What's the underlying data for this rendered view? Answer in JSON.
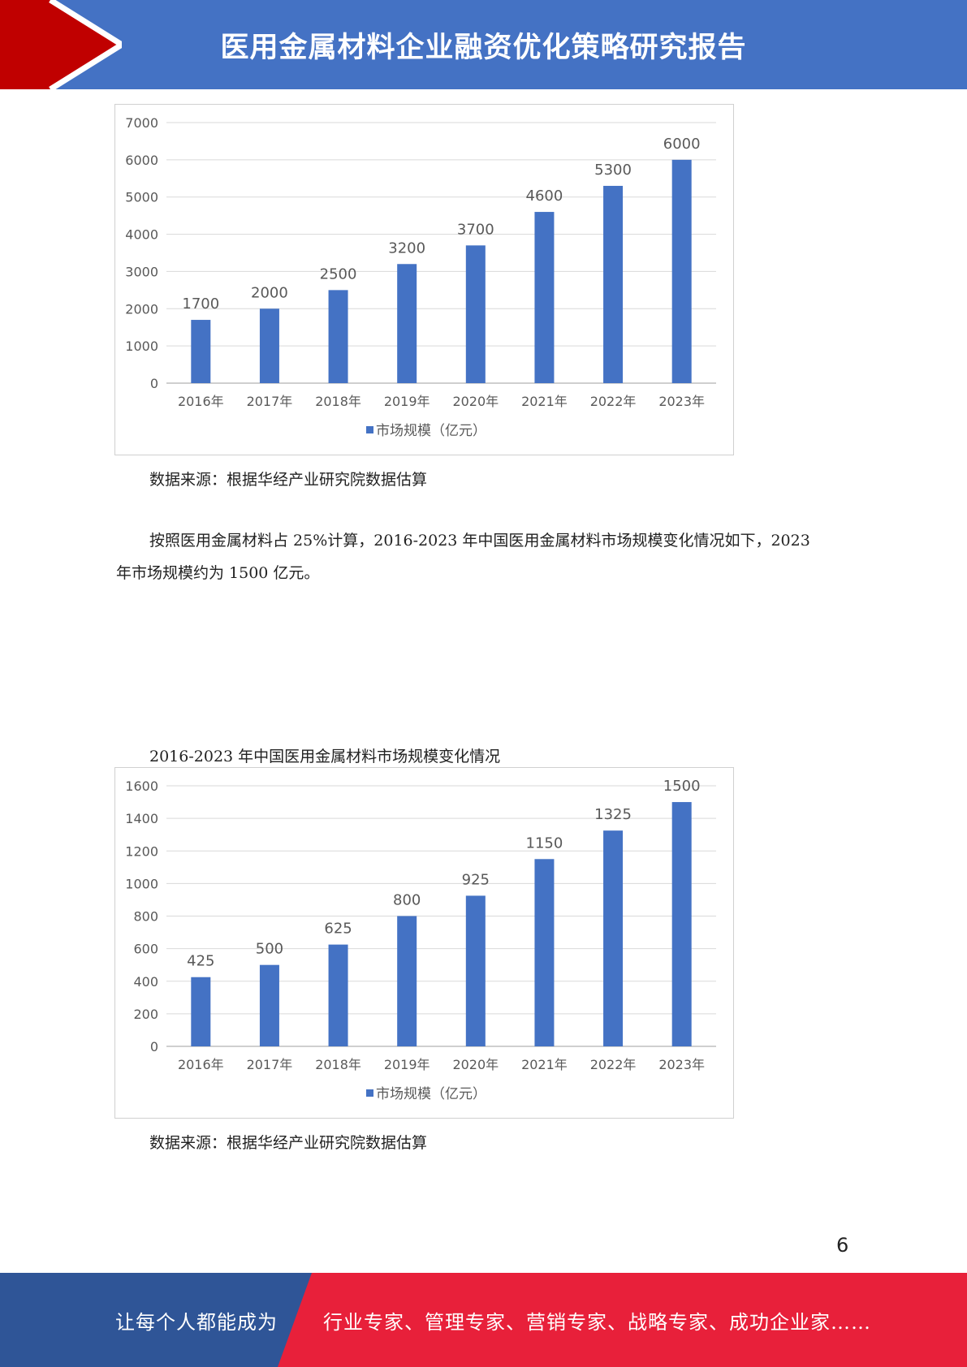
{
  "header": {
    "title": "医用金属材料企业融资优化策略研究报告"
  },
  "colors": {
    "header_blue": "#4472c4",
    "header_red": "#c00000",
    "bar_blue": "#4472c4",
    "footer_blue": "#2f5597",
    "footer_red": "#e8203a"
  },
  "chart1": {
    "source": "数据来源：根据华经产业研究院数据估算"
  },
  "paragraph": {
    "line1": "按照医用金属材料占 25%计算，2016-2023 年中国医用金属材料市场规模变化情况如下，2023",
    "line2": "年市场规模约为 1500 亿元。"
  },
  "chart2": {
    "caption": "2016-2023 年中国医用金属材料市场规模变化情况",
    "source": "数据来源：根据华经产业研究院数据估算"
  },
  "chart_data": [
    {
      "type": "bar",
      "categories": [
        "2016年",
        "2017年",
        "2018年",
        "2019年",
        "2020年",
        "2021年",
        "2022年",
        "2023年"
      ],
      "series": [
        {
          "name": "市场规模（亿元）",
          "values": [
            1700,
            2000,
            2500,
            3200,
            3700,
            4600,
            5300,
            6000
          ]
        }
      ],
      "ylim": [
        0,
        7000
      ],
      "yticks": [
        0,
        1000,
        2000,
        3000,
        4000,
        5000,
        6000,
        7000
      ],
      "grid": true,
      "legend": "bottom",
      "data_labels": true
    },
    {
      "type": "bar",
      "title": "2016-2023 年中国医用金属材料市场规模变化情况",
      "categories": [
        "2016年",
        "2017年",
        "2018年",
        "2019年",
        "2020年",
        "2021年",
        "2022年",
        "2023年"
      ],
      "series": [
        {
          "name": "市场规模（亿元）",
          "values": [
            425,
            500,
            625,
            800,
            925,
            1150,
            1325,
            1500
          ]
        }
      ],
      "ylim": [
        0,
        1600
      ],
      "yticks": [
        0,
        200,
        400,
        600,
        800,
        1000,
        1200,
        1400,
        1600
      ],
      "grid": true,
      "legend": "bottom",
      "data_labels": true
    }
  ],
  "page_number": "6",
  "footer": {
    "left_text": "让每个人都能成为",
    "right_text": "行业专家、管理专家、营销专家、战略专家、成功企业家……"
  }
}
